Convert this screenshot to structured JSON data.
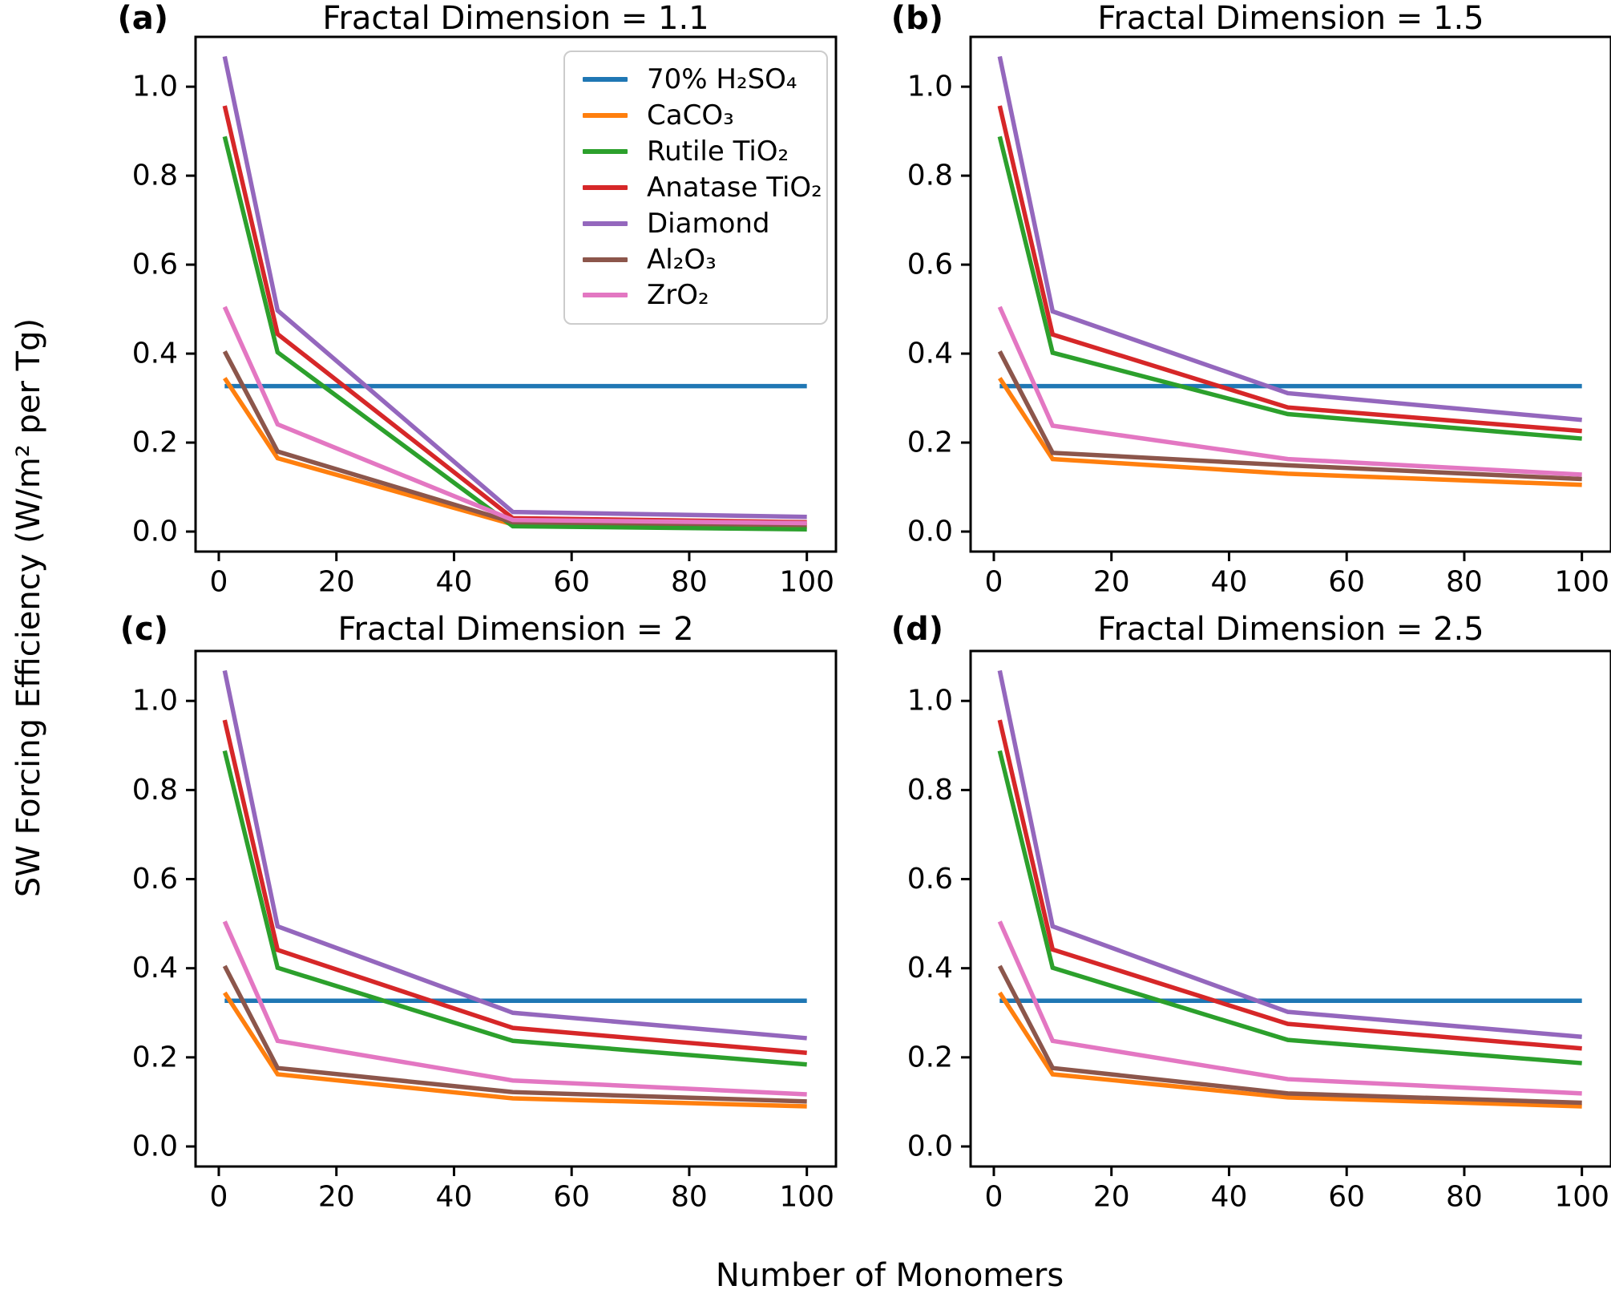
{
  "axes": {
    "x_label": "Number of Monomers",
    "y_label": "SW Forcing Efficiency (W/m² per Tg)",
    "x_tick_labels": [
      "0",
      "20",
      "40",
      "60",
      "80",
      "100"
    ],
    "y_tick_labels": [
      "0.0",
      "0.2",
      "0.4",
      "0.6",
      "0.8",
      "1.0"
    ]
  },
  "legend": {
    "position": "upper-right-of-panel-a"
  },
  "chart_data": {
    "type": "line",
    "x": [
      1,
      10,
      50,
      100
    ],
    "xlabel": "Number of Monomers",
    "ylabel": "SW Forcing Efficiency (W/m² per Tg)",
    "xlim": [
      -3.95,
      104.95
    ],
    "ylim": [
      -0.045,
      1.112
    ],
    "x_ticks": [
      0,
      20,
      40,
      60,
      80,
      100
    ],
    "y_ticks": [
      0.0,
      0.2,
      0.4,
      0.6,
      0.8,
      1.0
    ],
    "grid": false,
    "series_defs": [
      {
        "key": "h2so4",
        "label": "70% H₂SO₄",
        "color": "#1f77b4"
      },
      {
        "key": "caco3",
        "label": "CaCO₃",
        "color": "#ff7f0e"
      },
      {
        "key": "rutile-tio2",
        "label": "Rutile TiO₂",
        "color": "#2ca02c"
      },
      {
        "key": "anatase-tio2",
        "label": "Anatase TiO₂",
        "color": "#d62728"
      },
      {
        "key": "diamond",
        "label": "Diamond",
        "color": "#9467bd"
      },
      {
        "key": "al2o3",
        "label": "Al₂O₃",
        "color": "#8c564b"
      },
      {
        "key": "zro2",
        "label": "ZrO₂",
        "color": "#e377c2"
      }
    ],
    "panels": [
      {
        "id": "a",
        "letter": "(a)",
        "title": "Fractal Dimension = 1.1",
        "series": [
          {
            "key": "h2so4",
            "values": [
              0.327,
              0.327,
              0.327,
              0.327
            ]
          },
          {
            "key": "caco3",
            "values": [
              0.345,
              0.165,
              0.016,
              0.011
            ]
          },
          {
            "key": "rutile-tio2",
            "values": [
              0.888,
              0.403,
              0.012,
              0.005
            ]
          },
          {
            "key": "anatase-tio2",
            "values": [
              0.957,
              0.444,
              0.03,
              0.021
            ]
          },
          {
            "key": "diamond",
            "values": [
              1.068,
              0.497,
              0.044,
              0.033
            ]
          },
          {
            "key": "al2o3",
            "values": [
              0.405,
              0.18,
              0.021,
              0.015
            ]
          },
          {
            "key": "zro2",
            "values": [
              0.505,
              0.241,
              0.026,
              0.019
            ]
          }
        ]
      },
      {
        "id": "b",
        "letter": "(b)",
        "title": "Fractal Dimension = 1.5",
        "series": [
          {
            "key": "h2so4",
            "values": [
              0.327,
              0.327,
              0.327,
              0.327
            ]
          },
          {
            "key": "caco3",
            "values": [
              0.345,
              0.163,
              0.13,
              0.105
            ]
          },
          {
            "key": "rutile-tio2",
            "values": [
              0.888,
              0.402,
              0.264,
              0.209
            ]
          },
          {
            "key": "anatase-tio2",
            "values": [
              0.957,
              0.443,
              0.279,
              0.226
            ]
          },
          {
            "key": "diamond",
            "values": [
              1.068,
              0.495,
              0.311,
              0.251
            ]
          },
          {
            "key": "al2o3",
            "values": [
              0.405,
              0.177,
              0.149,
              0.118
            ]
          },
          {
            "key": "zro2",
            "values": [
              0.505,
              0.238,
              0.163,
              0.128
            ]
          }
        ]
      },
      {
        "id": "c",
        "letter": "(c)",
        "title": "Fractal Dimension = 2",
        "series": [
          {
            "key": "h2so4",
            "values": [
              0.327,
              0.327,
              0.327,
              0.327
            ]
          },
          {
            "key": "caco3",
            "values": [
              0.345,
              0.162,
              0.108,
              0.09
            ]
          },
          {
            "key": "rutile-tio2",
            "values": [
              0.888,
              0.401,
              0.237,
              0.184
            ]
          },
          {
            "key": "anatase-tio2",
            "values": [
              0.957,
              0.441,
              0.266,
              0.21
            ]
          },
          {
            "key": "diamond",
            "values": [
              1.068,
              0.494,
              0.3,
              0.243
            ]
          },
          {
            "key": "al2o3",
            "values": [
              0.405,
              0.176,
              0.122,
              0.101
            ]
          },
          {
            "key": "zro2",
            "values": [
              0.505,
              0.237,
              0.148,
              0.117
            ]
          }
        ]
      },
      {
        "id": "d",
        "letter": "(d)",
        "title": "Fractal Dimension = 2.5",
        "series": [
          {
            "key": "h2so4",
            "values": [
              0.327,
              0.327,
              0.327,
              0.327
            ]
          },
          {
            "key": "caco3",
            "values": [
              0.345,
              0.162,
              0.11,
              0.09
            ]
          },
          {
            "key": "rutile-tio2",
            "values": [
              0.888,
              0.401,
              0.239,
              0.187
            ]
          },
          {
            "key": "anatase-tio2",
            "values": [
              0.957,
              0.442,
              0.275,
              0.22
            ]
          },
          {
            "key": "diamond",
            "values": [
              1.068,
              0.494,
              0.302,
              0.246
            ]
          },
          {
            "key": "al2o3",
            "values": [
              0.405,
              0.176,
              0.119,
              0.098
            ]
          },
          {
            "key": "zro2",
            "values": [
              0.505,
              0.237,
              0.151,
              0.119
            ]
          }
        ]
      }
    ]
  }
}
